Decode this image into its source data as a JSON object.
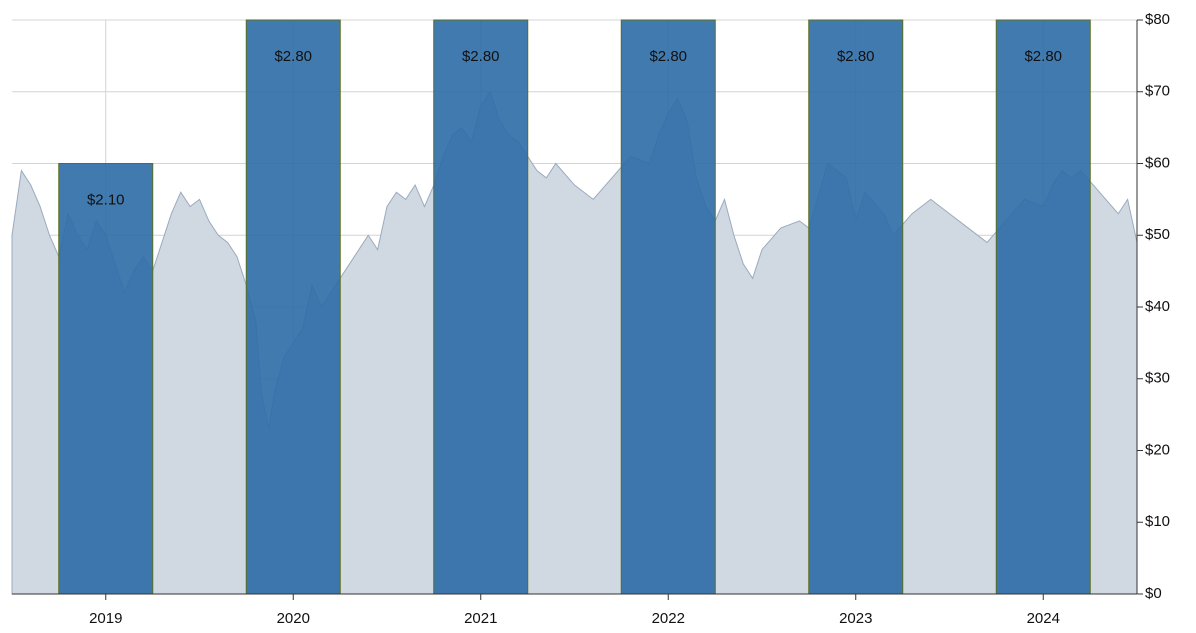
{
  "chart_data": {
    "type": "bar",
    "grid": true,
    "xlim": [
      2018.5,
      2024.5
    ],
    "xticks": [
      2019,
      2020,
      2021,
      2022,
      2023,
      2024
    ],
    "ylim": [
      0,
      80
    ],
    "yticks": [
      {
        "value": 0,
        "label": "$0"
      },
      {
        "value": 10,
        "label": "$10"
      },
      {
        "value": 20,
        "label": "$20"
      },
      {
        "value": 30,
        "label": "$30"
      },
      {
        "value": 40,
        "label": "$40"
      },
      {
        "value": 50,
        "label": "$50"
      },
      {
        "value": 60,
        "label": "$60"
      },
      {
        "value": 70,
        "label": "$70"
      },
      {
        "value": 80,
        "label": "$80"
      }
    ],
    "y2lim": [
      0,
      2.8
    ],
    "series": [
      {
        "type": "area",
        "color": "#d0d8e2",
        "line_color": "#9aabbe",
        "x": [
          2018.5,
          2018.55,
          2018.6,
          2018.65,
          2018.7,
          2018.75,
          2018.8,
          2018.85,
          2018.9,
          2018.95,
          2019.0,
          2019.05,
          2019.1,
          2019.15,
          2019.2,
          2019.25,
          2019.3,
          2019.35,
          2019.4,
          2019.45,
          2019.5,
          2019.55,
          2019.6,
          2019.65,
          2019.7,
          2019.75,
          2019.8,
          2019.83,
          2019.87,
          2019.9,
          2019.95,
          2020.0,
          2020.05,
          2020.1,
          2020.15,
          2020.2,
          2020.3,
          2020.4,
          2020.45,
          2020.5,
          2020.55,
          2020.6,
          2020.65,
          2020.7,
          2020.75,
          2020.8,
          2020.85,
          2020.9,
          2020.95,
          2021.0,
          2021.05,
          2021.1,
          2021.15,
          2021.2,
          2021.3,
          2021.35,
          2021.4,
          2021.5,
          2021.6,
          2021.7,
          2021.8,
          2021.9,
          2021.95,
          2022.0,
          2022.05,
          2022.1,
          2022.15,
          2022.2,
          2022.25,
          2022.3,
          2022.35,
          2022.4,
          2022.45,
          2022.5,
          2022.6,
          2022.7,
          2022.75,
          2022.85,
          2022.95,
          2023.0,
          2023.05,
          2023.15,
          2023.2,
          2023.3,
          2023.4,
          2023.5,
          2023.6,
          2023.7,
          2023.8,
          2023.9,
          2024.0,
          2024.05,
          2024.1,
          2024.15,
          2024.2,
          2024.3,
          2024.4,
          2024.45,
          2024.5
        ],
        "values": [
          50,
          59,
          57,
          54,
          50,
          47,
          53,
          50,
          48,
          52,
          50,
          46,
          42,
          45,
          47,
          45,
          49,
          53,
          56,
          54,
          55,
          52,
          50,
          49,
          47,
          43,
          38,
          28,
          23,
          28,
          33,
          35,
          37,
          43,
          40,
          42,
          46,
          50,
          48,
          54,
          56,
          55,
          57,
          54,
          57,
          61,
          64,
          65,
          63,
          68,
          70,
          66,
          64,
          63,
          59,
          58,
          60,
          57,
          55,
          58,
          61,
          60,
          64,
          67,
          69,
          66,
          58,
          54,
          52,
          55,
          50,
          46,
          44,
          48,
          51,
          52,
          51,
          60,
          58,
          52,
          56,
          53,
          50,
          53,
          55,
          53,
          51,
          49,
          52,
          55,
          54,
          57,
          59,
          58,
          59,
          56,
          53,
          55,
          49
        ]
      },
      {
        "type": "bar",
        "axis": "y2",
        "color": "#2c6ba6",
        "edge_color": "#5a6e1e",
        "x": [
          2019,
          2020,
          2021,
          2022,
          2023,
          2024
        ],
        "values": [
          2.1,
          2.8,
          2.8,
          2.8,
          2.8,
          2.8
        ],
        "value_labels": [
          "$2.10",
          "$2.80",
          "$2.80",
          "$2.80",
          "$2.80",
          "$2.80"
        ]
      }
    ]
  }
}
